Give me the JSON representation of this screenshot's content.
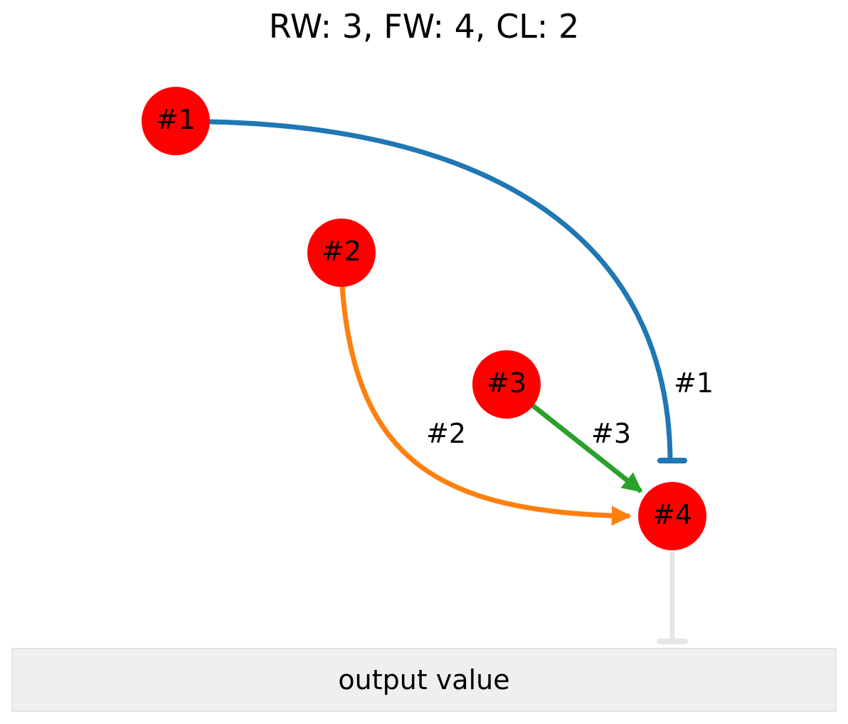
{
  "title": "RW: 3, FW: 4, CL: 2",
  "nodes": [
    {
      "id": "1",
      "label": "#1"
    },
    {
      "id": "2",
      "label": "#2"
    },
    {
      "id": "3",
      "label": "#3"
    },
    {
      "id": "4",
      "label": "#4"
    }
  ],
  "edges": [
    {
      "from": "1",
      "to": "4",
      "label": "#1",
      "type": "inhibit",
      "color": "#1f77b4"
    },
    {
      "from": "2",
      "to": "4",
      "label": "#2",
      "type": "activate",
      "color": "#ff7f0e"
    },
    {
      "from": "3",
      "to": "4",
      "label": "#3",
      "type": "activate",
      "color": "#2ca02c"
    },
    {
      "from": "4",
      "to": "output",
      "label": "",
      "type": "inhibit",
      "color": "#e6e6e6"
    }
  ],
  "node_color": "#ff0000",
  "output": {
    "label": "output value"
  }
}
